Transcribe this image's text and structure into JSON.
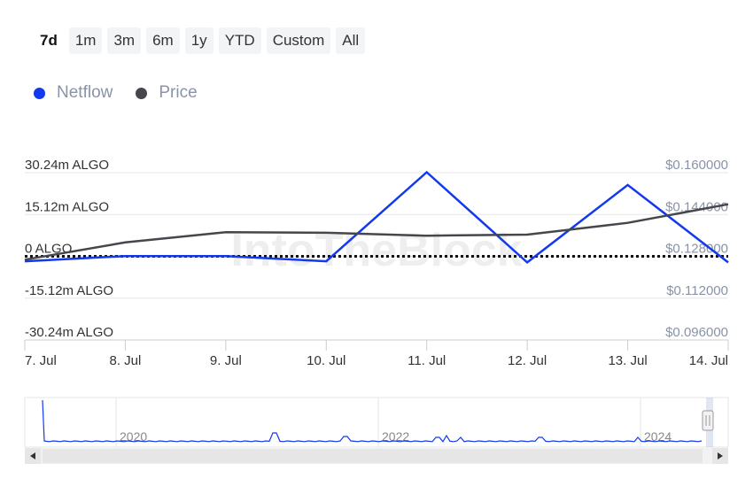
{
  "range_selector": {
    "buttons": [
      "7d",
      "1m",
      "3m",
      "6m",
      "1y",
      "YTD",
      "Custom",
      "All"
    ],
    "active": "7d"
  },
  "watermark": "IntoTheBlock",
  "chart_data": {
    "type": "line",
    "x": [
      "7. Jul",
      "8. Jul",
      "9. Jul",
      "10. Jul",
      "11. Jul",
      "12. Jul",
      "13. Jul",
      "14. Jul"
    ],
    "series": [
      {
        "name": "Netflow",
        "axis": "left",
        "color": "#1239ee",
        "values": [
          -1.8,
          0.1,
          0.1,
          -1.8,
          30.4,
          -2.2,
          25.8,
          -2.2
        ]
      },
      {
        "name": "Price",
        "axis": "right",
        "color": "#45474d",
        "values": [
          0.1267,
          0.1333,
          0.1372,
          0.137,
          0.1359,
          0.1363,
          0.1408,
          0.1479
        ]
      }
    ],
    "y_left": {
      "ylim": [
        -30.24,
        30.24
      ],
      "ticks": [
        30.24,
        15.12,
        0,
        -15.12,
        -30.24
      ],
      "tick_labels": [
        "30.24m ALGO",
        "15.12m ALGO",
        "0 ALGO",
        "-15.12m ALGO",
        "-30.24m ALGO"
      ]
    },
    "y_right": {
      "ylim": [
        0.096,
        0.16
      ],
      "ticks": [
        0.16,
        0.144,
        0.128,
        0.112,
        0.096
      ],
      "tick_labels": [
        "$0.160000",
        "$0.144000",
        "$0.128000",
        "$0.112000",
        "$0.096000"
      ]
    },
    "zero_line": "dotted",
    "grid": true,
    "legend_position": "top-left"
  },
  "navigator": {
    "year_labels": [
      "2020",
      "2022",
      "2024"
    ],
    "series_color": "#1239ee",
    "scroll_left_icon": "triangle-left",
    "scroll_right_icon": "triangle-right",
    "handle_icon": "grip"
  }
}
